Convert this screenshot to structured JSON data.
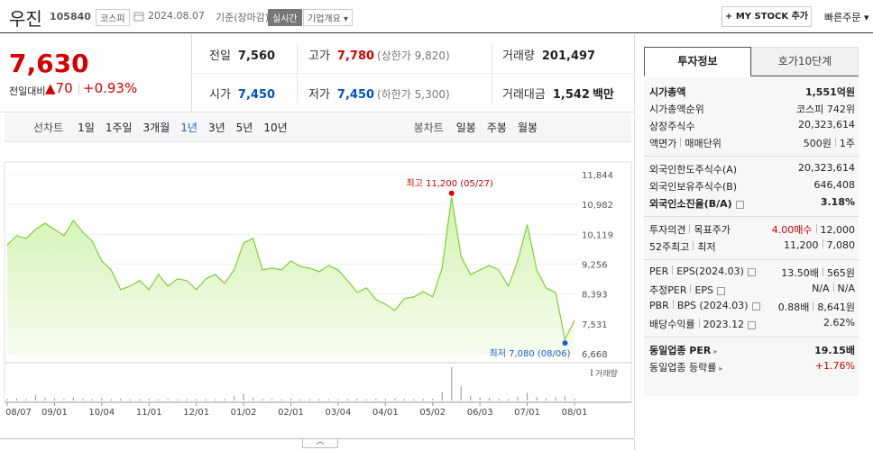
{
  "header": {
    "name": "우진",
    "code": "105840",
    "market": "코스피",
    "date": "2024.08.07",
    "basis": "기준(장마감)",
    "realtime": "실시간",
    "overview": "기업개요",
    "my_stock": "MY STOCK 추가",
    "quick_order": "빠른주문"
  },
  "price": {
    "current": "7,630",
    "change_label": "전일대비",
    "change": "70",
    "change_rate": "+0.93%"
  },
  "summary": [
    [
      {
        "label": "전일",
        "value": "7,560",
        "color": "#222222"
      },
      {
        "label": "고가",
        "value": "7,780",
        "color": "#d60000",
        "note": "(상한가 9,820)"
      },
      {
        "label": "거래량",
        "value": "201,497",
        "color": "#222222"
      }
    ],
    [
      {
        "label": "시가",
        "value": "7,450",
        "color": "#0051c7"
      },
      {
        "label": "저가",
        "value": "7,450",
        "color": "#0051c7",
        "note": "(하한가 5,300)"
      },
      {
        "label": "거래대금",
        "value": "1,542",
        "color": "#222222",
        "unit": "백만"
      }
    ]
  ],
  "tabs": {
    "line_chart": "선차트",
    "line_periods": [
      "1일",
      "1주일",
      "3개월",
      "1년",
      "3년",
      "5년",
      "10년"
    ],
    "candle_chart": "봉차트",
    "candle_periods": [
      "일봉",
      "주봉",
      "월봉"
    ]
  },
  "chart_data": {
    "type": "area",
    "color": "#7fcf3a",
    "categories": [
      "08/07",
      null,
      null,
      null,
      null,
      "09/01",
      null,
      null,
      null,
      null,
      "10/04",
      null,
      null,
      null,
      null,
      "11/01",
      null,
      null,
      null,
      null,
      "12/01",
      null,
      null,
      null,
      null,
      "01/02",
      null,
      null,
      null,
      null,
      "02/01",
      null,
      null,
      null,
      null,
      "03/04",
      null,
      null,
      null,
      null,
      "04/01",
      null,
      null,
      null,
      null,
      "05/02",
      null,
      null,
      null,
      null,
      "06/03",
      null,
      null,
      null,
      null,
      "07/01",
      null,
      null,
      null,
      null,
      "08/01"
    ],
    "values": [
      9810,
      10080,
      10000,
      10260,
      10440,
      10260,
      10080,
      10520,
      10180,
      9920,
      9350,
      9090,
      8520,
      8620,
      8780,
      8520,
      8960,
      8620,
      8830,
      8780,
      8520,
      8830,
      8960,
      8700,
      9090,
      9870,
      10000,
      9090,
      9140,
      9090,
      9350,
      9190,
      9140,
      9040,
      9220,
      9090,
      8780,
      8440,
      8570,
      8230,
      8100,
      7920,
      8260,
      8310,
      8460,
      8310,
      9140,
      11200,
      9480,
      8960,
      9090,
      9220,
      9090,
      8620,
      9350,
      10400,
      9090,
      8570,
      8440,
      7080,
      7630
    ],
    "ylim": [
      6668,
      11844
    ],
    "yticks": [
      {
        "value": 6668,
        "label": "6,668"
      },
      {
        "value": 7531,
        "label": "7,531"
      },
      {
        "value": 8393,
        "label": "8,393"
      },
      {
        "value": 9256,
        "label": "9,256"
      },
      {
        "value": 10119,
        "label": "10,119"
      },
      {
        "value": 10982,
        "label": "10,982"
      },
      {
        "value": 11844,
        "label": "11,844"
      }
    ],
    "grid": true,
    "high_label": "최고 11,200 (05/27)",
    "low_label": "최저 7,080 (08/06)",
    "volume": {
      "name": "거래량",
      "color": "#9aa3ad",
      "values": [
        180000,
        220000,
        150000,
        600000,
        300000,
        200000,
        160000,
        350000,
        180000,
        150000,
        250000,
        140000,
        200000,
        120000,
        150000,
        180000,
        130000,
        160000,
        120000,
        140000,
        150000,
        130000,
        120000,
        160000,
        450000,
        700000,
        300000,
        180000,
        150000,
        130000,
        200000,
        140000,
        120000,
        160000,
        130000,
        120000,
        150000,
        200000,
        140000,
        180000,
        160000,
        220000,
        150000,
        140000,
        160000,
        180000,
        900000,
        3500000,
        1500000,
        500000,
        300000,
        250000,
        200000,
        150000,
        400000,
        800000,
        350000,
        250000,
        300000,
        450000,
        201497
      ]
    }
  },
  "info_panel": {
    "tabs": [
      "투자정보",
      "호가10단계"
    ],
    "groups": [
      [
        {
          "label": [
            "시가총액"
          ],
          "value": [
            "1,551억원"
          ],
          "bold": true
        },
        {
          "label": [
            "시가총액순위"
          ],
          "value": [
            "코스피 742위"
          ]
        },
        {
          "label": [
            "상장주식수"
          ],
          "value": [
            "20,323,614"
          ]
        },
        {
          "label": [
            "액면가",
            "매매단위"
          ],
          "value": [
            "500원",
            "1주"
          ]
        }
      ],
      [
        {
          "label": [
            "외국인한도주식수(A)"
          ],
          "value": [
            "20,323,614"
          ]
        },
        {
          "label": [
            "외국인보유주식수(B)"
          ],
          "value": [
            "646,408"
          ]
        },
        {
          "label": [
            "외국인소진율(B/A)"
          ],
          "value": [
            "3.18%"
          ],
          "bold": true,
          "help": true
        }
      ],
      [
        {
          "label": [
            "투자의견",
            "목표주가"
          ],
          "value": [
            "4.00매수",
            "12,000"
          ],
          "value_color": "#d60000"
        },
        {
          "label": [
            "52주최고",
            "최저"
          ],
          "value": [
            "11,200",
            "7,080"
          ]
        }
      ],
      [
        {
          "label": [
            "PER",
            "EPS(2024.03)"
          ],
          "value": [
            "13.50배",
            "565원"
          ],
          "help": true
        },
        {
          "label": [
            "추정PER",
            "EPS"
          ],
          "value": [
            "N/A",
            "N/A"
          ],
          "help": true
        },
        {
          "label": [
            "PBR",
            "BPS (2024.03)"
          ],
          "value": [
            "0.88배",
            "8,641원"
          ],
          "help": true
        },
        {
          "label": [
            "배당수익률",
            "2023.12"
          ],
          "value": [
            "2.62%"
          ],
          "help": true
        }
      ],
      [
        {
          "label": [
            "동일업종 PER"
          ],
          "value": [
            "19.15배"
          ],
          "bold": true,
          "arrow": true
        },
        {
          "label": [
            "동일업종 등락률"
          ],
          "value": [
            "+1.76%"
          ],
          "value_color": "#d60000",
          "arrow": true
        }
      ]
    ]
  }
}
